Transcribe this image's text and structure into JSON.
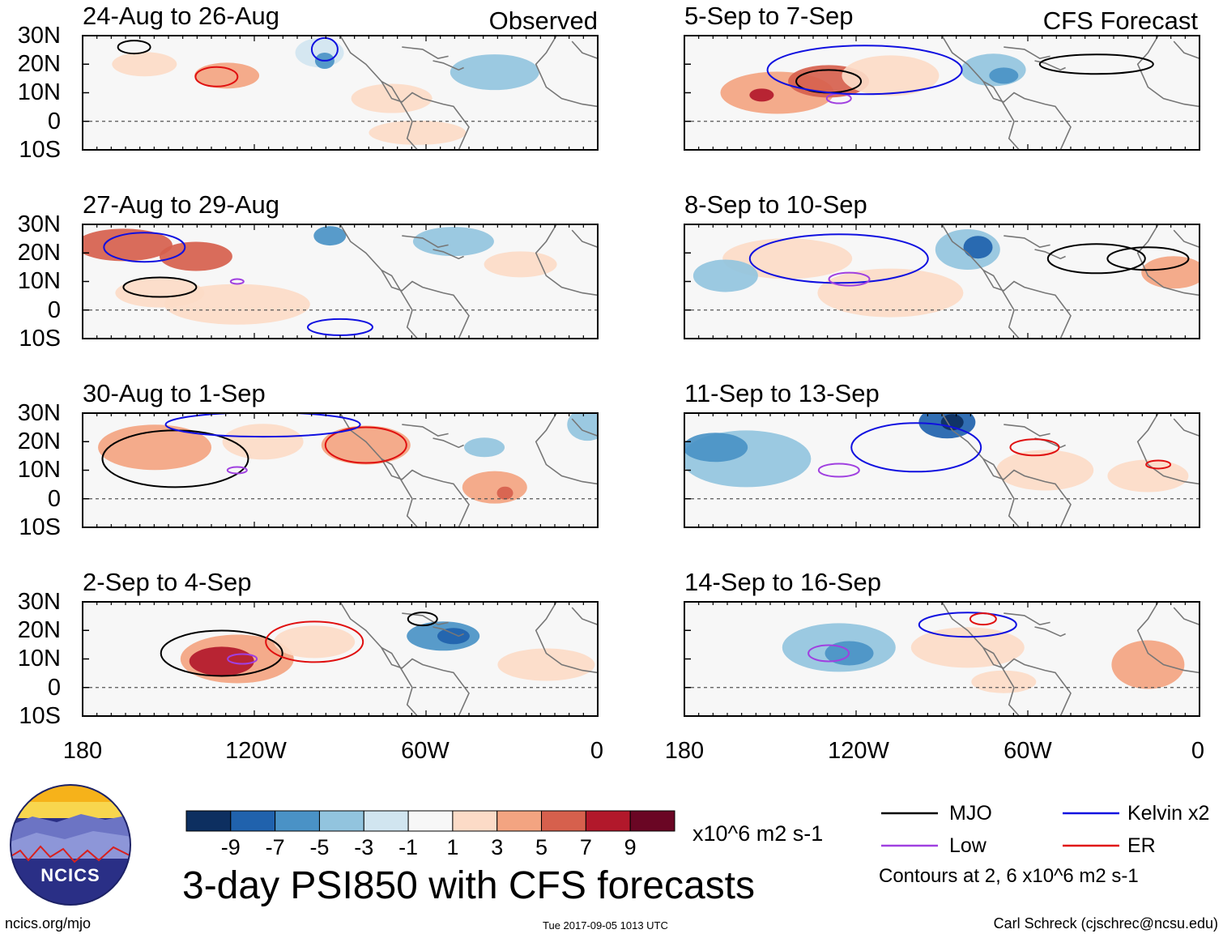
{
  "figure": {
    "title": "3-day PSI850 with CFS forecasts",
    "observed_label": "Observed",
    "forecast_label": "CFS Forecast",
    "units": "x10^6 m2 s-1",
    "website": "ncics.org/mjo",
    "timestamp": "Tue 2017-09-05 1013 UTC",
    "author": "Carl Schreck (cjschrec@ncsu.edu)",
    "logo_text": "NCICS"
  },
  "panels": [
    {
      "title": "24-Aug to 26-Aug",
      "kind": "observed"
    },
    {
      "title": "27-Aug to 29-Aug",
      "kind": "observed"
    },
    {
      "title": "30-Aug to 1-Sep",
      "kind": "observed"
    },
    {
      "title": "2-Sep to 4-Sep",
      "kind": "observed"
    },
    {
      "title": "5-Sep to 7-Sep",
      "kind": "forecast"
    },
    {
      "title": "8-Sep to 10-Sep",
      "kind": "forecast"
    },
    {
      "title": "11-Sep to 13-Sep",
      "kind": "forecast"
    },
    {
      "title": "14-Sep to 16-Sep",
      "kind": "forecast"
    }
  ],
  "axes": {
    "lat_ticks": [
      "30N",
      "20N",
      "10N",
      "0",
      "10S"
    ],
    "lat_values": [
      30,
      20,
      10,
      0,
      -10
    ],
    "lon_ticks": [
      "180",
      "120W",
      "60W",
      "0"
    ],
    "lon_values": [
      -180,
      -120,
      -60,
      0
    ]
  },
  "colorbar": {
    "labels": [
      "-9",
      "-7",
      "-5",
      "-3",
      "-1",
      "1",
      "3",
      "5",
      "7",
      "9"
    ],
    "colors": [
      "#0d2f60",
      "#2062ad",
      "#4a92c6",
      "#92c4de",
      "#d1e5f0",
      "#f7f7f7",
      "#fcdbc7",
      "#f3a481",
      "#d6604d",
      "#b2182b",
      "#6a0624"
    ]
  },
  "legend": {
    "items": [
      {
        "label": "MJO",
        "color": "#000000"
      },
      {
        "label": "Kelvin x2",
        "color": "#1010e0"
      },
      {
        "label": "Low",
        "color": "#a040e0"
      },
      {
        "label": "ER",
        "color": "#e01010"
      }
    ],
    "note": "Contours at 2, 6 x10^6 m2 s-1"
  }
}
